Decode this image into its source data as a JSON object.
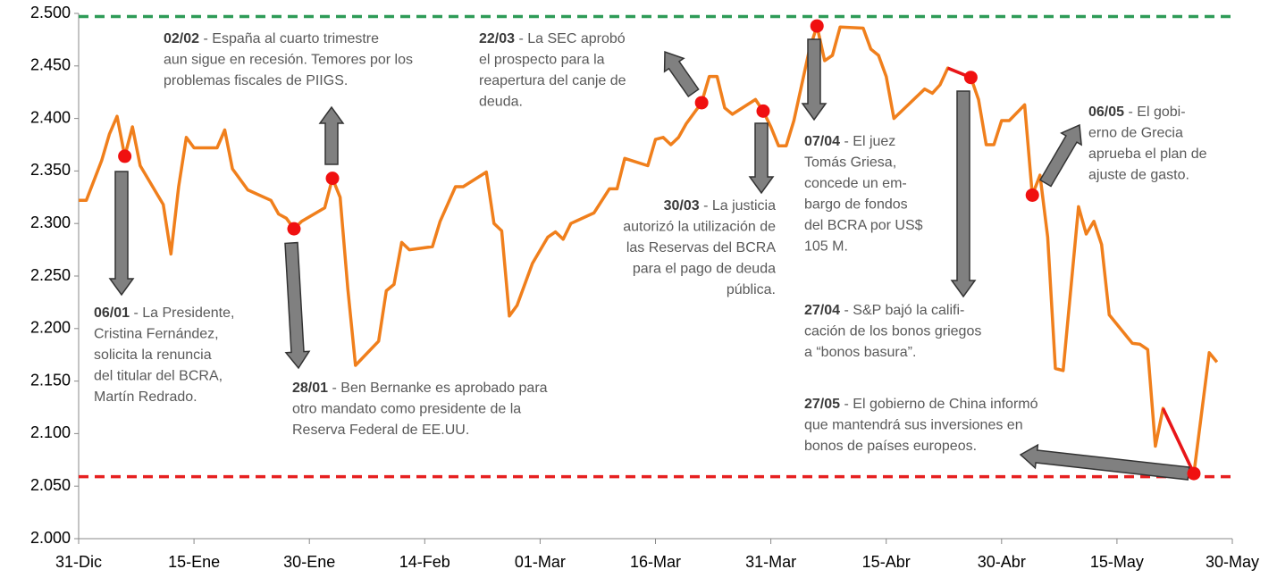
{
  "chart_data": {
    "type": "line",
    "x": [
      0,
      1,
      3,
      4,
      5,
      6,
      7,
      8,
      11,
      12,
      13,
      14,
      15,
      18,
      19,
      20,
      22,
      25,
      26,
      27,
      28,
      29,
      32,
      33,
      34,
      35,
      36,
      39,
      40,
      41,
      42,
      43,
      46,
      47,
      49,
      50,
      53,
      54,
      55,
      56,
      57,
      59,
      61,
      62,
      63,
      64,
      67,
      69,
      70,
      71,
      74,
      75,
      76,
      77,
      78,
      79,
      81,
      82,
      83,
      84,
      85,
      88,
      89,
      90,
      91,
      92,
      93,
      95,
      96,
      97,
      98,
      99,
      102,
      103,
      104,
      105,
      106,
      109,
      110,
      111,
      112,
      113,
      116,
      117,
      118,
      119,
      120,
      121,
      123,
      124,
      125,
      126,
      127,
      128,
      130,
      131,
      132,
      133,
      134,
      137,
      138,
      139,
      140,
      141,
      145,
      147,
      148
    ],
    "series": [
      {
        "color": "#f07f1c",
        "values": [
          2.322,
          2.322,
          2.36,
          2.385,
          2.402,
          2.364,
          2.392,
          2.355,
          2.318,
          2.271,
          2.335,
          2.382,
          2.372,
          2.372,
          2.389,
          2.352,
          2.332,
          2.322,
          2.309,
          2.305,
          2.295,
          2.302,
          2.315,
          2.343,
          2.325,
          2.238,
          2.165,
          2.188,
          2.236,
          2.242,
          2.282,
          2.275,
          2.278,
          2.302,
          2.335,
          2.335,
          2.349,
          2.3,
          2.293,
          2.212,
          2.222,
          2.262,
          2.287,
          2.292,
          2.285,
          2.3,
          2.31,
          2.333,
          2.333,
          2.362,
          2.355,
          2.38,
          2.382,
          2.375,
          2.382,
          2.395,
          2.415,
          2.44,
          2.44,
          2.41,
          2.404,
          2.418,
          2.407,
          2.392,
          2.374,
          2.374,
          2.398,
          2.465,
          2.488,
          2.455,
          2.46,
          2.487,
          2.486,
          2.466,
          2.46,
          2.44,
          2.4,
          2.421,
          2.428,
          2.424,
          2.432,
          2.448,
          2.439,
          2.418,
          2.375,
          2.375,
          2.398,
          2.398,
          2.413,
          2.327,
          2.346,
          2.287,
          2.162,
          2.16,
          2.316,
          2.29,
          2.302,
          2.28,
          2.213,
          2.186,
          2.185,
          2.18,
          2.088,
          2.124,
          2.062,
          2.177,
          2.168
        ]
      },
      {
        "color": "#e8151b",
        "x": [
          113,
          116
        ],
        "values": [
          2.448,
          2.439
        ]
      },
      {
        "color": "#e8151b",
        "x": [
          141,
          145
        ],
        "values": [
          2.124,
          2.062
        ]
      }
    ],
    "xlim": [
      0,
      150
    ],
    "xticks": [
      {
        "value": 0,
        "label": "31-Dic"
      },
      {
        "value": 15,
        "label": "15-Ene"
      },
      {
        "value": 30,
        "label": "30-Ene"
      },
      {
        "value": 45,
        "label": "14-Feb"
      },
      {
        "value": 60,
        "label": "01-Mar"
      },
      {
        "value": 75,
        "label": "16-Mar"
      },
      {
        "value": 90,
        "label": "31-Mar"
      },
      {
        "value": 105,
        "label": "15-Abr"
      },
      {
        "value": 120,
        "label": "30-Abr"
      },
      {
        "value": 135,
        "label": "15-May"
      },
      {
        "value": 150,
        "label": "30-May"
      }
    ],
    "ylim": [
      2.0,
      2.5
    ],
    "yticks": [
      {
        "value": 2.0,
        "label": "2.000"
      },
      {
        "value": 2.05,
        "label": "2.050"
      },
      {
        "value": 2.1,
        "label": "2.100"
      },
      {
        "value": 2.15,
        "label": "2.150"
      },
      {
        "value": 2.2,
        "label": "2.200"
      },
      {
        "value": 2.25,
        "label": "2.250"
      },
      {
        "value": 2.3,
        "label": "2.300"
      },
      {
        "value": 2.35,
        "label": "2.350"
      },
      {
        "value": 2.4,
        "label": "2.400"
      },
      {
        "value": 2.45,
        "label": "2.450"
      },
      {
        "value": 2.5,
        "label": "2.500"
      }
    ],
    "reference_lines": [
      {
        "value": 2.497,
        "color": "#2e9b57"
      },
      {
        "value": 2.059,
        "color": "#e62020"
      }
    ],
    "marker_color": "#f01010",
    "annotations": [
      {
        "x": 6,
        "y": 2.364,
        "date": "06/01",
        "lines": [
          "- La Presidente,",
          "Cristina Fernández,",
          "solicita la renuncia",
          "del titular del BCRA,",
          "Martín Redrado."
        ]
      },
      {
        "x": 28,
        "y": 2.295,
        "date": "28/01",
        "lines": [
          "- Ben Bernanke es aprobado para",
          "otro mandato como presidente de la",
          "Reserva Federal de EE.UU."
        ]
      },
      {
        "x": 33,
        "y": 2.343,
        "date": "02/02",
        "lines": [
          "- España al cuarto trimestre",
          "aun sigue en recesión. Temores por los",
          "problemas fiscales de PIIGS."
        ]
      },
      {
        "x": 81,
        "y": 2.415,
        "date": "22/03",
        "lines": [
          "- La SEC aprobó",
          "el prospecto para la",
          "reapertura del canje de",
          "deuda."
        ]
      },
      {
        "x": 89,
        "y": 2.407,
        "date": "30/03",
        "lines": [
          "- La justicia",
          "autorizó la utilización de",
          "las Reservas del BCRA",
          "para el pago de deuda",
          "pública."
        ]
      },
      {
        "x": 96,
        "y": 2.488,
        "date": "07/04",
        "lines": [
          "- El juez",
          "Tomás Griesa,",
          "concede un em-",
          "bargo de fondos",
          "del BCRA por US$",
          "105 M."
        ]
      },
      {
        "x": 116,
        "y": 2.439,
        "date": "27/04",
        "lines": [
          "- S&P bajó la califi-",
          "cación de los bonos griegos",
          "a “bonos basura”."
        ]
      },
      {
        "x": 124,
        "y": 2.327,
        "date": "06/05",
        "lines": [
          "- El gobi-",
          "erno de Grecia",
          "aprueba el plan de",
          "ajuste de gasto."
        ]
      },
      {
        "x": 145,
        "y": 2.062,
        "date": "27/05",
        "lines": [
          "- El gobierno de China informó",
          "que mantendrá sus inversiones en",
          "bonos de países europeos."
        ]
      }
    ]
  }
}
